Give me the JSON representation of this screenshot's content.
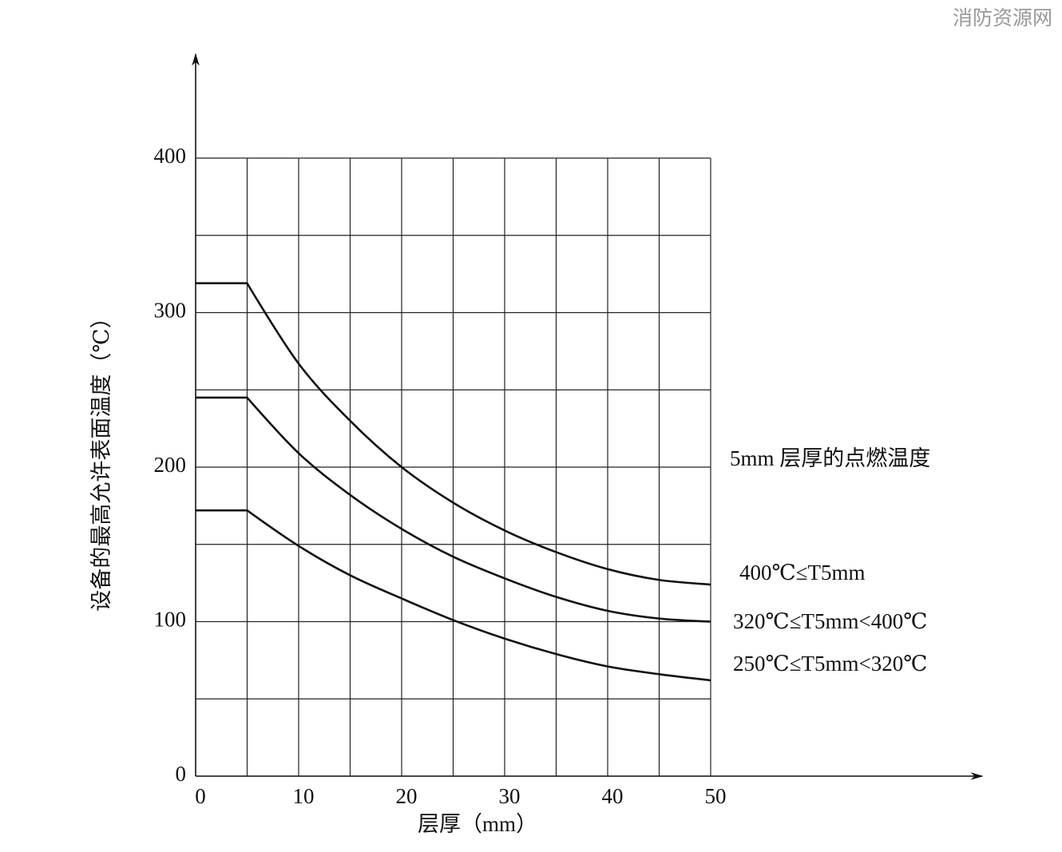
{
  "watermark": "消防资源网",
  "chart_data": {
    "type": "line",
    "xlabel": "层厚（mm）",
    "ylabel": "设备的最高允许表面温度（℃）",
    "legend_title": "5mm 层厚的点燃温度",
    "x": [
      0,
      5,
      10,
      15,
      20,
      25,
      30,
      35,
      40,
      45,
      50
    ],
    "series": [
      {
        "name": "400℃≤T5mm",
        "color": "#111111",
        "values": [
          319,
          319,
          267,
          230,
          200,
          177,
          159,
          145,
          134,
          127,
          124
        ]
      },
      {
        "name": "320℃≤T5mm<400℃",
        "color": "#111111",
        "values": [
          245,
          245,
          209,
          182,
          160,
          142,
          128,
          116,
          107,
          102,
          100
        ]
      },
      {
        "name": "250℃≤T5mm<320℃",
        "color": "#111111",
        "values": [
          172,
          172,
          149,
          130,
          115,
          101,
          89,
          79,
          71,
          66,
          62
        ]
      }
    ],
    "xlim": [
      0,
      50
    ],
    "ylim": [
      0,
      400
    ],
    "xticks": [
      0,
      10,
      20,
      30,
      40,
      50
    ],
    "yticks": [
      0,
      100,
      200,
      300,
      400
    ],
    "xgrid": [
      0,
      5,
      10,
      15,
      20,
      25,
      30,
      35,
      40,
      45,
      50
    ],
    "ygrid": [
      0,
      50,
      100,
      150,
      200,
      250,
      300,
      350,
      400
    ],
    "grid": true
  }
}
